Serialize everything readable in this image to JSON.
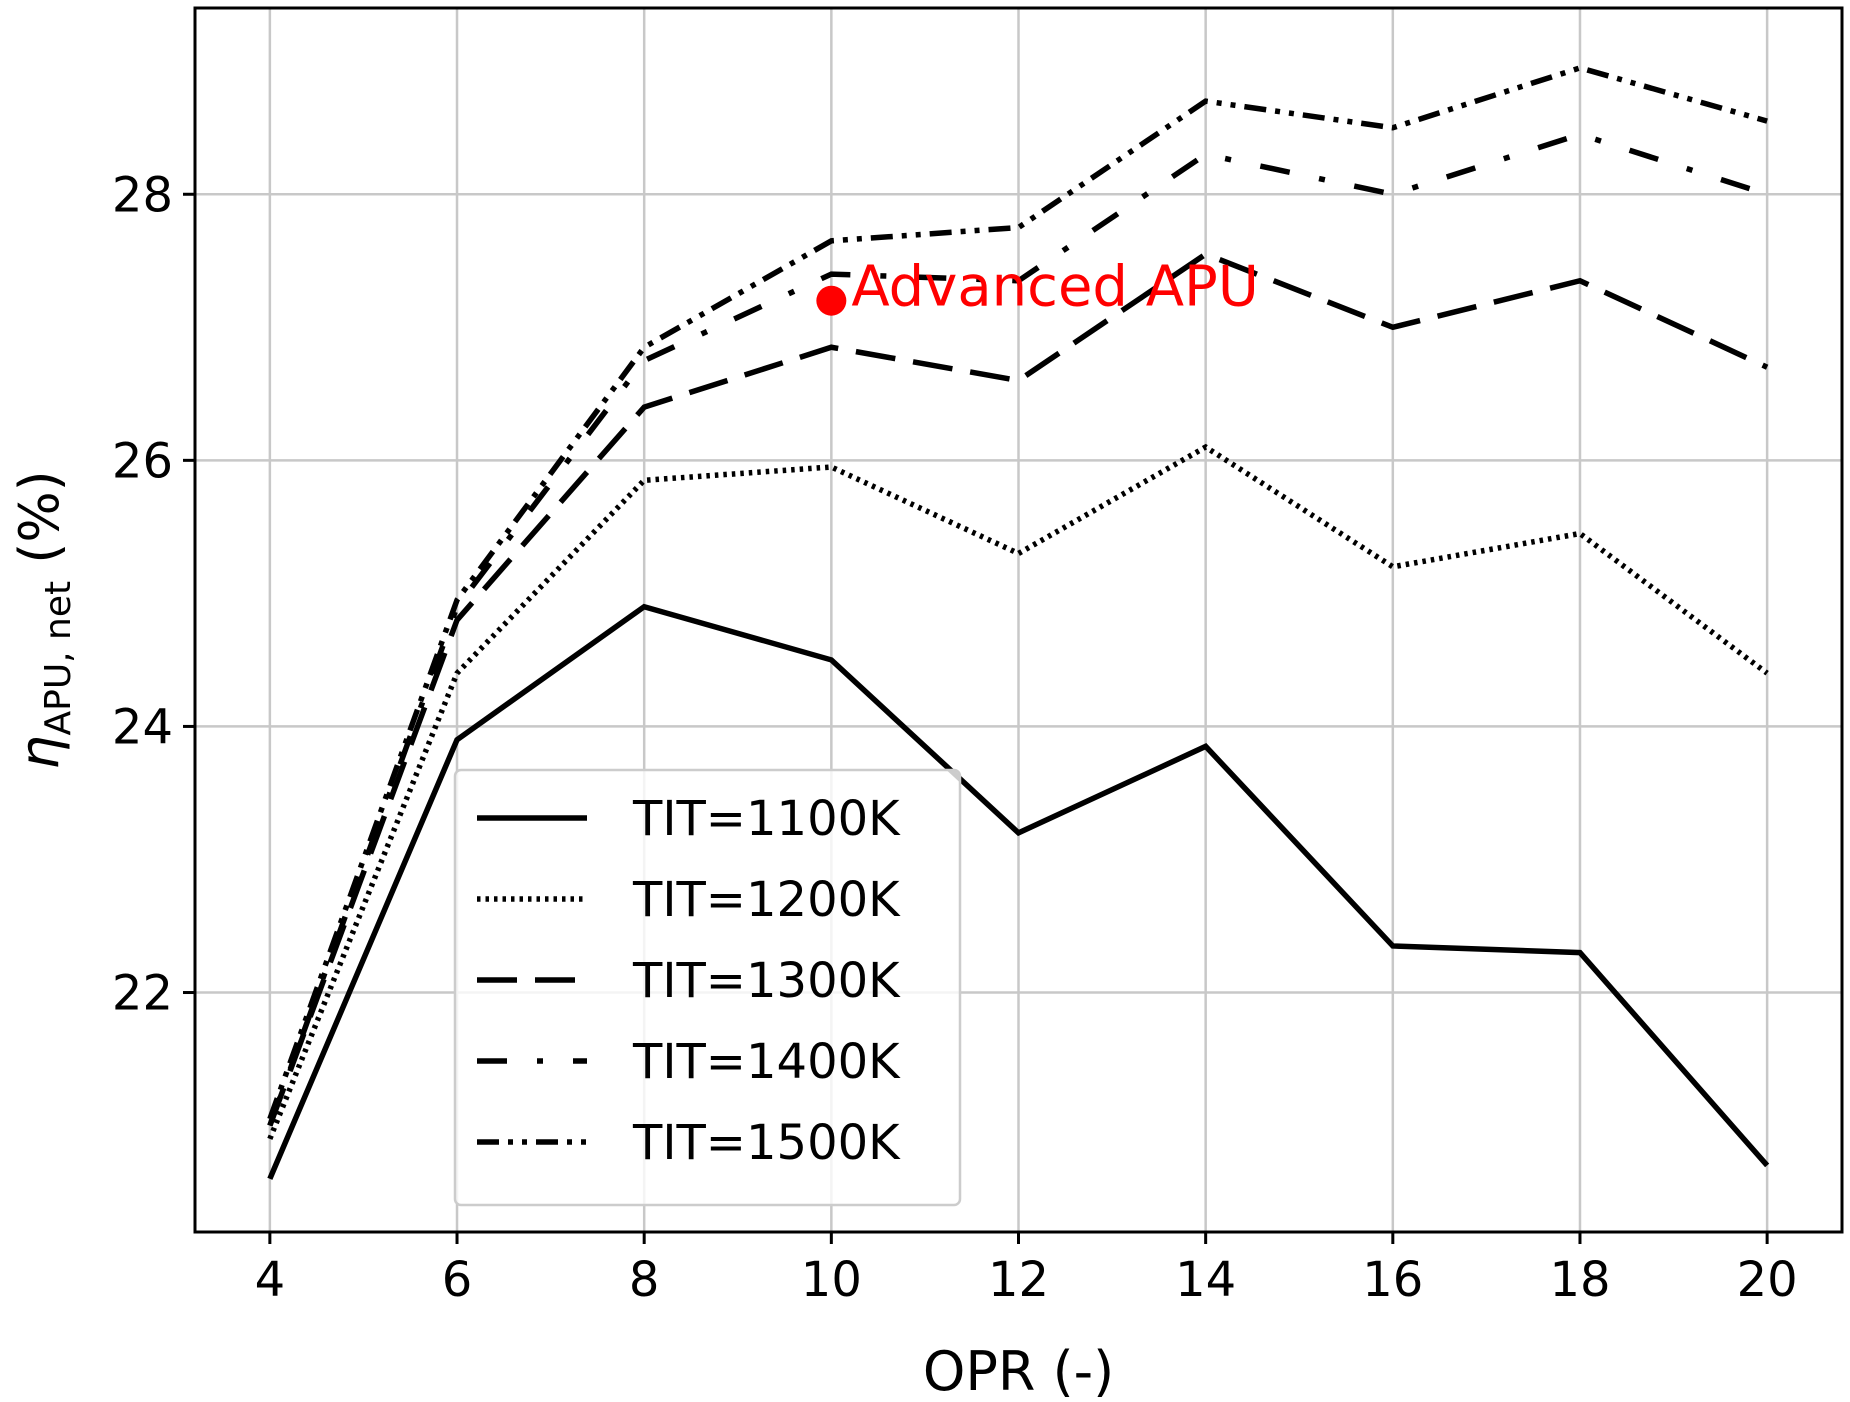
{
  "chart_data": {
    "type": "line",
    "title": "",
    "xlabel": "OPR (-)",
    "ylabel": {
      "main": "η",
      "subscript": "APU, net",
      "suffix": " (%)"
    },
    "xlim": [
      3.2,
      20.8
    ],
    "ylim": [
      20.2,
      29.4
    ],
    "xticks": [
      4,
      6,
      8,
      10,
      12,
      14,
      16,
      18,
      20
    ],
    "yticks": [
      22,
      24,
      26,
      28
    ],
    "grid": true,
    "legend_position": "lower-left",
    "x": [
      4,
      6,
      8,
      10,
      12,
      14,
      16,
      18,
      20
    ],
    "series": [
      {
        "name": "TIT=1100K",
        "style": "solid",
        "values": [
          20.6,
          23.9,
          24.9,
          24.5,
          23.2,
          23.85,
          22.35,
          22.3,
          20.7
        ]
      },
      {
        "name": "TIT=1200K",
        "style": "dotted",
        "values": [
          20.9,
          24.4,
          25.85,
          25.95,
          25.3,
          26.1,
          25.2,
          25.45,
          24.4
        ]
      },
      {
        "name": "TIT=1300K",
        "style": "dashed",
        "values": [
          21.0,
          24.8,
          26.4,
          26.85,
          26.6,
          27.55,
          27.0,
          27.35,
          26.7
        ]
      },
      {
        "name": "TIT=1400K",
        "style": "dashdot-loose",
        "values": [
          21.0,
          24.9,
          26.75,
          27.4,
          27.35,
          28.3,
          28.0,
          28.45,
          28.0
        ]
      },
      {
        "name": "TIT=1500K",
        "style": "dashdotdot",
        "values": [
          21.05,
          24.95,
          26.85,
          27.65,
          27.75,
          28.7,
          28.5,
          28.95,
          28.55
        ]
      }
    ],
    "annotations": [
      {
        "text": "Advanced APU",
        "x": 10,
        "y": 27.2,
        "color": "#ff0000"
      }
    ]
  }
}
